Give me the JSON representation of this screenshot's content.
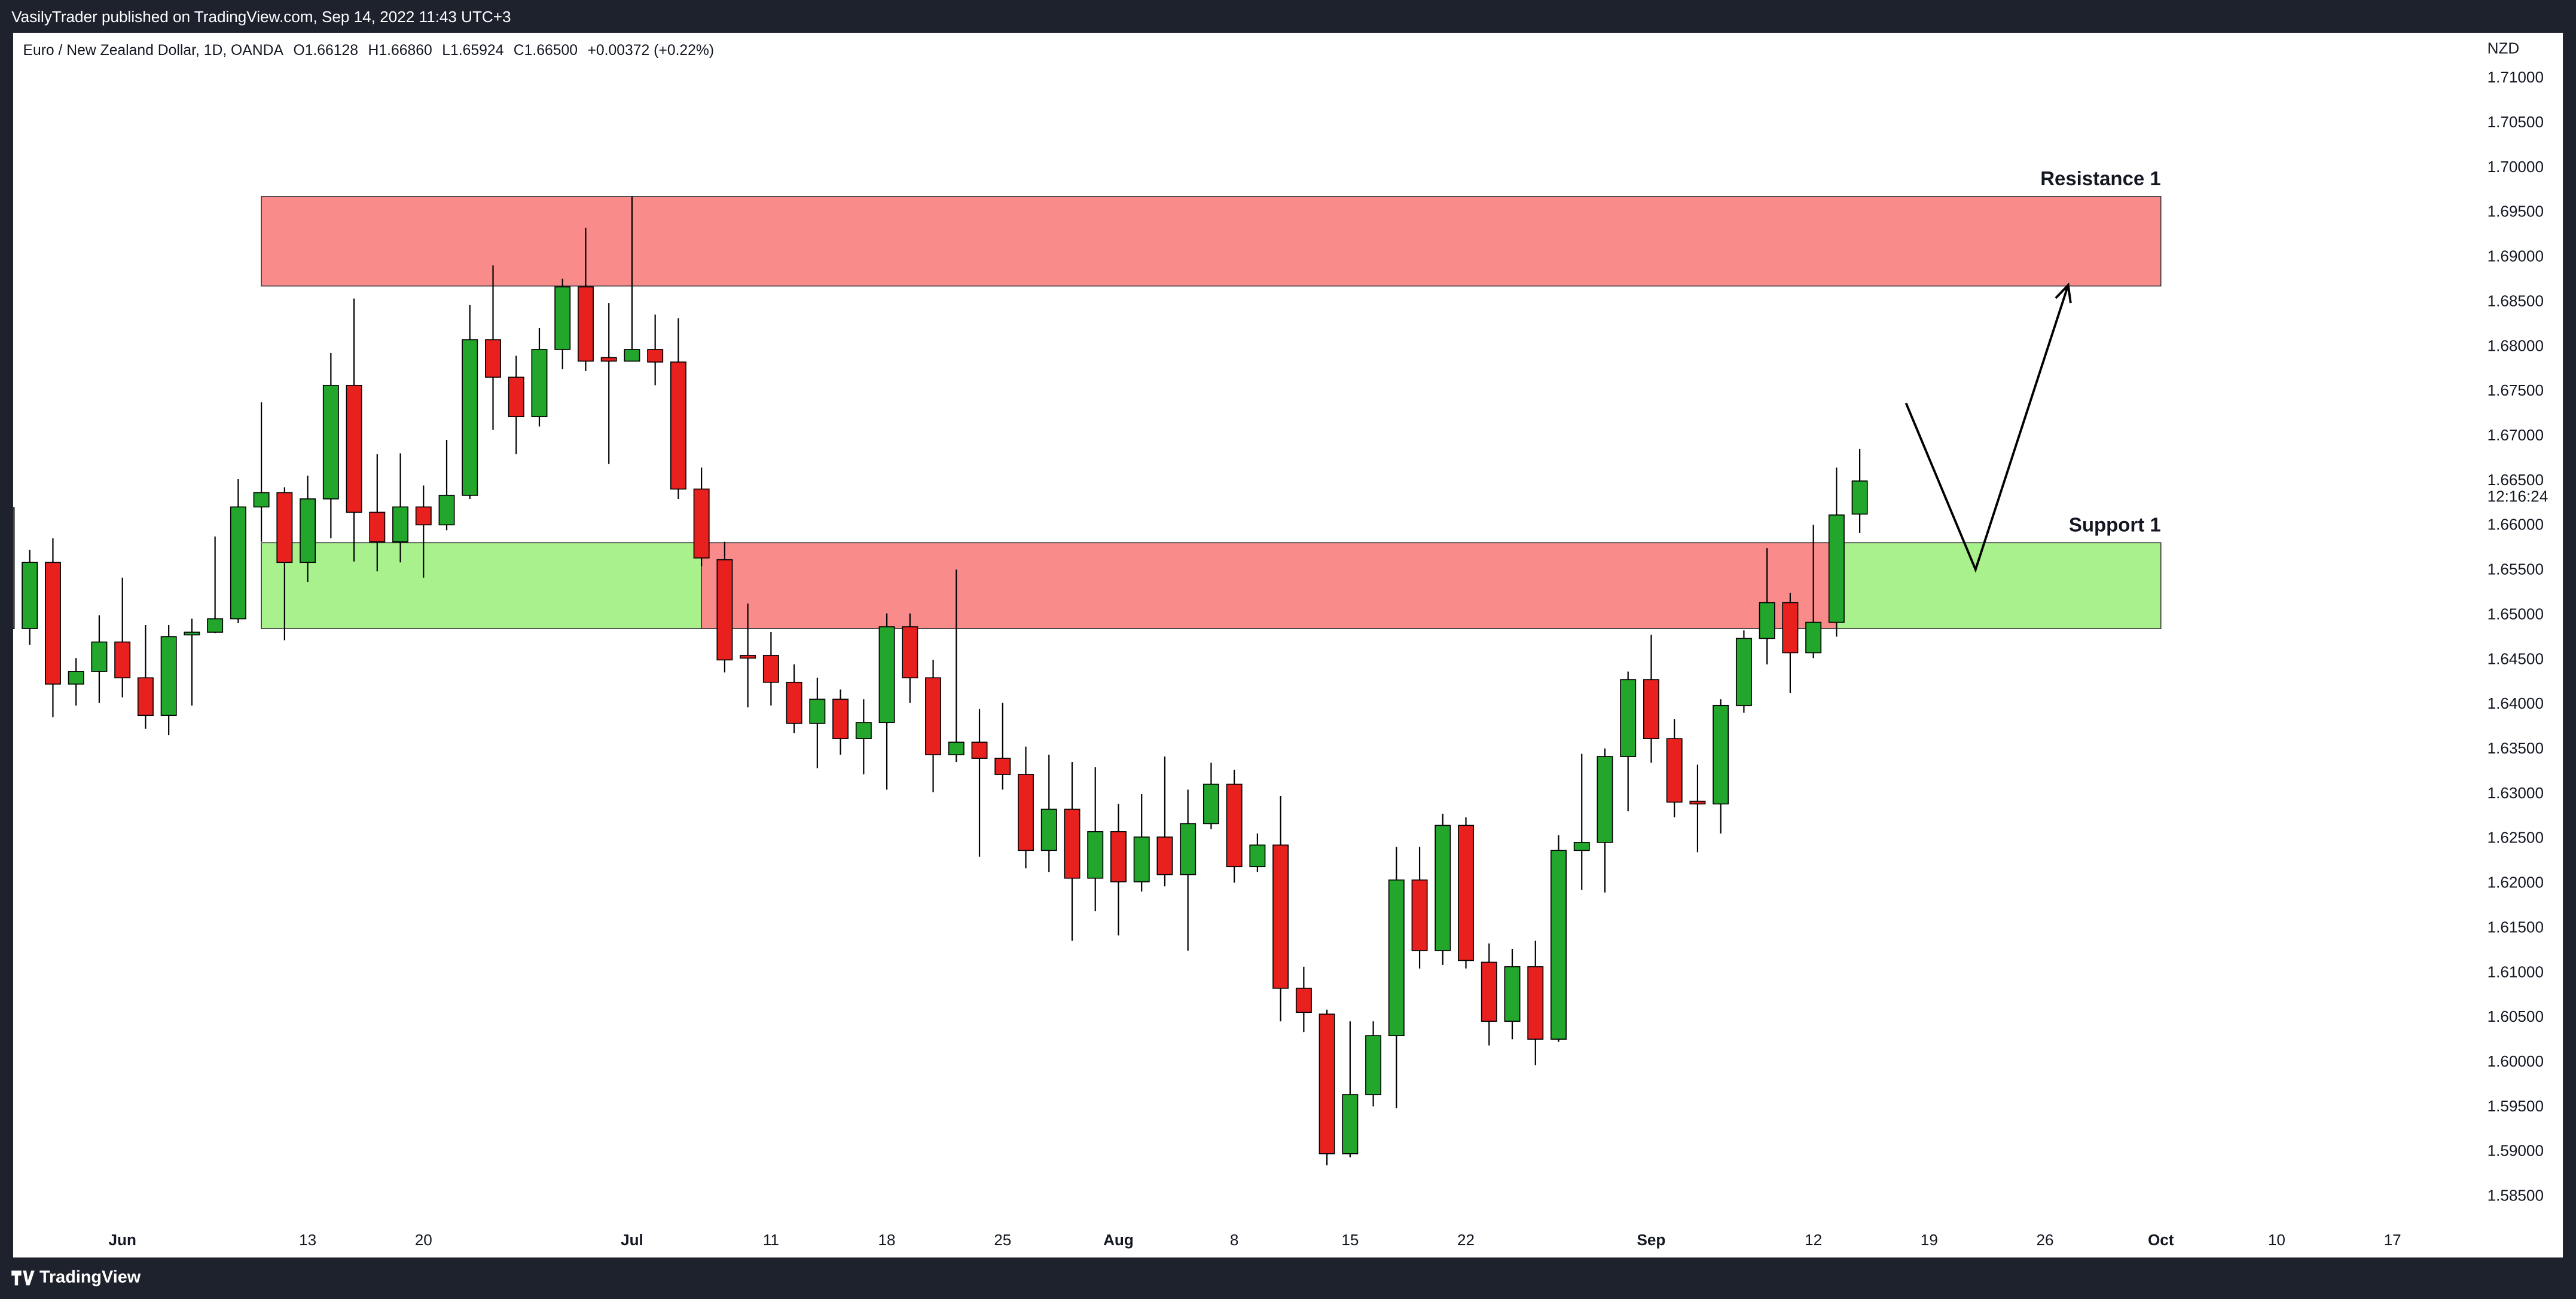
{
  "header": {
    "published": "VasilyTrader published on TradingView.com, Sep 14, 2022 11:43 UTC+3"
  },
  "footer": {
    "brand": "TradingView"
  },
  "chart_data": {
    "type": "candlestick",
    "legend": {
      "symbol": "Euro / New Zealand Dollar, 1D, OANDA",
      "open": "O1.66128",
      "high": "H1.66860",
      "low": "L1.65924",
      "close": "C1.66500",
      "change": "+0.00372 (+0.22%)"
    },
    "currency": "NZD",
    "countdown": "12:16:24",
    "up_color": "#22a62b",
    "down_color": "#e8211f",
    "x": [
      "2022-05-25",
      "2022-05-26",
      "2022-05-27",
      "2022-05-30",
      "2022-05-31",
      "2022-06-01",
      "2022-06-02",
      "2022-06-03",
      "2022-06-06",
      "2022-06-07",
      "2022-06-08",
      "2022-06-09",
      "2022-06-10",
      "2022-06-13",
      "2022-06-14",
      "2022-06-15",
      "2022-06-16",
      "2022-06-17",
      "2022-06-20",
      "2022-06-21",
      "2022-06-22",
      "2022-06-23",
      "2022-06-24",
      "2022-06-27",
      "2022-06-28",
      "2022-06-29",
      "2022-06-30",
      "2022-07-01",
      "2022-07-04",
      "2022-07-05",
      "2022-07-06",
      "2022-07-07",
      "2022-07-08",
      "2022-07-11",
      "2022-07-12",
      "2022-07-13",
      "2022-07-14",
      "2022-07-15",
      "2022-07-18",
      "2022-07-19",
      "2022-07-20",
      "2022-07-21",
      "2022-07-22",
      "2022-07-25",
      "2022-07-26",
      "2022-07-27",
      "2022-07-28",
      "2022-07-29",
      "2022-08-01",
      "2022-08-02",
      "2022-08-03",
      "2022-08-04",
      "2022-08-05",
      "2022-08-08",
      "2022-08-09",
      "2022-08-10",
      "2022-08-11",
      "2022-08-12",
      "2022-08-15",
      "2022-08-16",
      "2022-08-17",
      "2022-08-18",
      "2022-08-19",
      "2022-08-22",
      "2022-08-23",
      "2022-08-24",
      "2022-08-25",
      "2022-08-26",
      "2022-08-29",
      "2022-08-30",
      "2022-08-31",
      "2022-09-01",
      "2022-09-02",
      "2022-09-05",
      "2022-09-06",
      "2022-09-07",
      "2022-09-08",
      "2022-09-09",
      "2022-09-12",
      "2022-09-13",
      "2022-09-14"
    ],
    "open": [
      1.662,
      1.6485,
      1.6559,
      1.6423,
      1.6437,
      1.647,
      1.643,
      1.6388,
      1.6478,
      1.6481,
      1.6496,
      1.6621,
      1.6637,
      1.6559,
      1.663,
      1.6757,
      1.6615,
      1.6582,
      1.6621,
      1.6601,
      1.6634,
      1.6808,
      1.6766,
      1.6722,
      1.6797,
      1.6867,
      1.6788,
      1.6784,
      1.6797,
      1.6783,
      1.6641,
      1.6562,
      1.6455,
      1.6455,
      1.6425,
      1.6379,
      1.6406,
      1.6362,
      1.638,
      1.6487,
      1.643,
      1.6344,
      1.6358,
      1.634,
      1.6322,
      1.6237,
      1.6283,
      1.6206,
      1.6258,
      1.6202,
      1.6252,
      1.621,
      1.6267,
      1.6311,
      1.6219,
      1.6243,
      1.6083,
      1.6054,
      1.5898,
      1.5964,
      1.603,
      1.6204,
      1.6125,
      1.6265,
      1.6112,
      1.6046,
      1.6107,
      1.6026,
      1.6237,
      1.6246,
      1.6342,
      1.6428,
      1.6362,
      1.6292,
      1.6289,
      1.6399,
      1.6474,
      1.6514,
      1.6458,
      1.6492,
      1.6613
    ],
    "high": [
      1.662,
      1.6573,
      1.6586,
      1.6452,
      1.65,
      1.6542,
      1.6489,
      1.6489,
      1.6496,
      1.6588,
      1.6652,
      1.6738,
      1.6643,
      1.6656,
      1.6793,
      1.6854,
      1.668,
      1.6681,
      1.6645,
      1.6696,
      1.6847,
      1.6891,
      1.679,
      1.6821,
      1.6876,
      1.6933,
      1.6849,
      1.6968,
      1.6836,
      1.6832,
      1.6665,
      1.6582,
      1.6513,
      1.6481,
      1.6445,
      1.643,
      1.6417,
      1.6406,
      1.6502,
      1.6502,
      1.645,
      1.6551,
      1.6395,
      1.6402,
      1.6353,
      1.6344,
      1.6336,
      1.633,
      1.6289,
      1.63,
      1.6342,
      1.6305,
      1.6335,
      1.6327,
      1.6256,
      1.6298,
      1.6107,
      1.6059,
      1.6046,
      1.6046,
      1.6241,
      1.6241,
      1.6278,
      1.6274,
      1.6133,
      1.6127,
      1.6136,
      1.6254,
      1.6345,
      1.6351,
      1.6437,
      1.6478,
      1.6384,
      1.6333,
      1.6406,
      1.6483,
      1.6575,
      1.6525,
      1.6601,
      1.6665,
      1.6686
    ],
    "low": [
      1.647,
      1.6467,
      1.6386,
      1.6399,
      1.6402,
      1.6408,
      1.6373,
      1.6366,
      1.6399,
      1.648,
      1.6491,
      1.6582,
      1.6472,
      1.6537,
      1.6586,
      1.656,
      1.6549,
      1.6559,
      1.6542,
      1.6595,
      1.663,
      1.6707,
      1.668,
      1.6711,
      1.6775,
      1.6773,
      1.6669,
      1.6784,
      1.6757,
      1.663,
      1.6555,
      1.6436,
      1.6397,
      1.6399,
      1.6368,
      1.6329,
      1.6344,
      1.6322,
      1.6305,
      1.6402,
      1.6302,
      1.6336,
      1.623,
      1.6305,
      1.6217,
      1.6213,
      1.6136,
      1.6169,
      1.6142,
      1.6191,
      1.6197,
      1.6125,
      1.6261,
      1.6201,
      1.6213,
      1.6046,
      1.6034,
      1.5885,
      1.5894,
      1.5951,
      1.5949,
      1.6105,
      1.6109,
      1.6105,
      1.6019,
      1.6026,
      1.5997,
      1.6023,
      1.6193,
      1.619,
      1.6281,
      1.6335,
      1.6274,
      1.6235,
      1.6256,
      1.6391,
      1.6445,
      1.6413,
      1.6452,
      1.6476,
      1.6592
    ],
    "close": [
      1.6485,
      1.6559,
      1.6423,
      1.6437,
      1.647,
      1.643,
      1.6388,
      1.6476,
      1.6481,
      1.6496,
      1.6621,
      1.6637,
      1.6559,
      1.663,
      1.6757,
      1.6615,
      1.6582,
      1.6621,
      1.6601,
      1.6634,
      1.6808,
      1.6766,
      1.6722,
      1.6797,
      1.6867,
      1.6784,
      1.6784,
      1.6797,
      1.6783,
      1.6641,
      1.6564,
      1.645,
      1.6452,
      1.6425,
      1.6379,
      1.6406,
      1.6362,
      1.638,
      1.6487,
      1.643,
      1.6344,
      1.6358,
      1.634,
      1.6322,
      1.6237,
      1.6283,
      1.6206,
      1.6258,
      1.6202,
      1.6252,
      1.621,
      1.6267,
      1.6311,
      1.6219,
      1.6243,
      1.6083,
      1.6056,
      1.5898,
      1.5964,
      1.603,
      1.6204,
      1.6125,
      1.6265,
      1.6114,
      1.6046,
      1.6107,
      1.6026,
      1.6237,
      1.6246,
      1.6342,
      1.6428,
      1.6362,
      1.6291,
      1.6289,
      1.6399,
      1.6474,
      1.6514,
      1.6458,
      1.6492,
      1.6612,
      1.665
    ],
    "xlim": [
      "2022-05-25",
      "2022-10-20"
    ],
    "xticks": [
      {
        "value": "2022-06-01",
        "label": "Jun"
      },
      {
        "value": "2022-06-13",
        "label": "13"
      },
      {
        "value": "2022-06-20",
        "label": "20"
      },
      {
        "value": "2022-07-01",
        "label": "Jul"
      },
      {
        "value": "2022-07-11",
        "label": "11"
      },
      {
        "value": "2022-07-18",
        "label": "18"
      },
      {
        "value": "2022-07-25",
        "label": "25"
      },
      {
        "value": "2022-08-01",
        "label": "Aug"
      },
      {
        "value": "2022-08-08",
        "label": "8"
      },
      {
        "value": "2022-08-15",
        "label": "15"
      },
      {
        "value": "2022-08-22",
        "label": "22"
      },
      {
        "value": "2022-09-01",
        "label": "Sep"
      },
      {
        "value": "2022-09-12",
        "label": "12"
      },
      {
        "value": "2022-09-19",
        "label": "19"
      },
      {
        "value": "2022-09-26",
        "label": "26"
      },
      {
        "value": "2022-10-03",
        "label": "Oct"
      },
      {
        "value": "2022-10-10",
        "label": "10"
      },
      {
        "value": "2022-10-17",
        "label": "17"
      }
    ],
    "ylim": [
      1.5782,
      1.7151
    ],
    "yticks": [
      {
        "value": 1.585,
        "label": "1.58500"
      },
      {
        "value": 1.59,
        "label": "1.59000"
      },
      {
        "value": 1.595,
        "label": "1.59500"
      },
      {
        "value": 1.6,
        "label": "1.60000"
      },
      {
        "value": 1.605,
        "label": "1.60500"
      },
      {
        "value": 1.61,
        "label": "1.61000"
      },
      {
        "value": 1.615,
        "label": "1.61500"
      },
      {
        "value": 1.62,
        "label": "1.62000"
      },
      {
        "value": 1.625,
        "label": "1.62500"
      },
      {
        "value": 1.63,
        "label": "1.63000"
      },
      {
        "value": 1.635,
        "label": "1.63500"
      },
      {
        "value": 1.64,
        "label": "1.64000"
      },
      {
        "value": 1.645,
        "label": "1.64500"
      },
      {
        "value": 1.65,
        "label": "1.65000"
      },
      {
        "value": 1.655,
        "label": "1.65500"
      },
      {
        "value": 1.66,
        "label": "1.66000"
      },
      {
        "value": 1.665,
        "label": "1.66500"
      },
      {
        "value": 1.67,
        "label": "1.67000"
      },
      {
        "value": 1.675,
        "label": "1.67500"
      },
      {
        "value": 1.68,
        "label": "1.68000"
      },
      {
        "value": 1.685,
        "label": "1.68500"
      },
      {
        "value": 1.69,
        "label": "1.69000"
      },
      {
        "value": 1.695,
        "label": "1.69500"
      },
      {
        "value": 1.7,
        "label": "1.70000"
      },
      {
        "value": 1.705,
        "label": "1.70500"
      },
      {
        "value": 1.71,
        "label": "1.71000"
      }
    ],
    "grid": false,
    "zones": [
      {
        "label": "Resistance 1",
        "x": [
          "2022-06-09",
          "2022-10-03"
        ],
        "y": [
          1.6868,
          1.6968
        ],
        "color": "#f98b8a"
      },
      {
        "label": "Support 1",
        "x": [
          "2022-06-09",
          "2022-10-03"
        ],
        "y": [
          1.6485,
          1.6581
        ],
        "color": "#a9f18c"
      },
      {
        "x": [
          "2022-07-06",
          "2022-09-13"
        ],
        "y": [
          1.6485,
          1.6581
        ],
        "color": "#f98b8a"
      }
    ],
    "projection": {
      "x": [
        "2022-09-16",
        "2022-09-21",
        "2022-09-27"
      ],
      "y": [
        1.6737,
        1.6551,
        1.6869
      ],
      "color": "#000000"
    }
  }
}
